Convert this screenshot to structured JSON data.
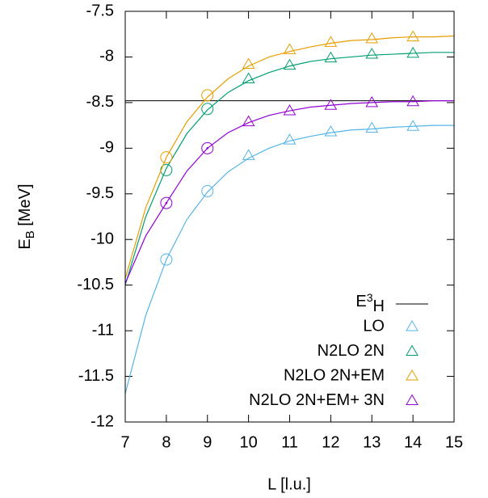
{
  "chart_data": {
    "type": "line",
    "xlabel": "L [l.u.]",
    "ylabel": {
      "main": "E",
      "sub": "B",
      "unit": " [MeV]"
    },
    "xlim": [
      7,
      15
    ],
    "ylim": [
      -12,
      -7.5
    ],
    "xticks": [
      7,
      8,
      9,
      10,
      11,
      12,
      13,
      14,
      15
    ],
    "yticks": [
      -12,
      -11.5,
      -11,
      -10.5,
      -10,
      -9.5,
      -9,
      -8.5,
      -8,
      -7.5
    ],
    "reference": {
      "label_parts": [
        "E",
        "3",
        "H"
      ],
      "value": -8.48,
      "color": "#000000"
    },
    "fit_x": [
      7,
      7.5,
      8,
      8.5,
      9,
      9.5,
      10,
      10.5,
      11,
      11.5,
      12,
      12.5,
      13,
      13.5,
      14,
      14.5,
      15
    ],
    "series": [
      {
        "name": "LO",
        "color": "#56b4e9",
        "x": [
          8,
          9,
          10,
          11,
          12,
          13,
          14
        ],
        "values": [
          -10.22,
          -9.47,
          -9.08,
          -8.91,
          -8.82,
          -8.78,
          -8.76
        ],
        "markers": [
          "circle",
          "circle",
          "triangle",
          "triangle",
          "triangle",
          "triangle",
          "triangle"
        ],
        "fit_values": [
          -11.69,
          -10.83,
          -10.22,
          -9.78,
          -9.48,
          -9.26,
          -9.11,
          -9.0,
          -8.92,
          -8.87,
          -8.83,
          -8.8,
          -8.79,
          -8.77,
          -8.76,
          -8.75,
          -8.75
        ]
      },
      {
        "name": "N2LO 2N",
        "color": "#009e73",
        "x": [
          8,
          9,
          10,
          11,
          12,
          13,
          14
        ],
        "values": [
          -9.24,
          -8.57,
          -8.24,
          -8.09,
          -8.01,
          -7.97,
          -7.96
        ],
        "markers": [
          "circle",
          "circle",
          "triangle",
          "triangle",
          "triangle",
          "triangle",
          "triangle"
        ],
        "fit_values": [
          -10.5,
          -9.75,
          -9.22,
          -8.84,
          -8.58,
          -8.39,
          -8.26,
          -8.17,
          -8.1,
          -8.05,
          -8.02,
          -8.0,
          -7.98,
          -7.97,
          -7.96,
          -7.95,
          -7.95
        ]
      },
      {
        "name": "N2LO 2N+EM",
        "color": "#e69f00",
        "x": [
          8,
          9,
          10,
          11,
          12,
          13,
          14
        ],
        "values": [
          -9.1,
          -8.42,
          -8.08,
          -7.92,
          -7.84,
          -7.8,
          -7.78
        ],
        "markers": [
          "circle",
          "circle",
          "triangle",
          "triangle",
          "triangle",
          "triangle",
          "triangle"
        ],
        "fit_values": [
          -10.43,
          -9.65,
          -9.1,
          -8.71,
          -8.44,
          -8.24,
          -8.1,
          -8.0,
          -7.94,
          -7.89,
          -7.85,
          -7.82,
          -7.81,
          -7.79,
          -7.78,
          -7.78,
          -7.77
        ]
      },
      {
        "name": "N2LO 2N+EM+ 3N",
        "color": "#9400d3",
        "x": [
          8,
          9,
          10,
          11,
          12,
          13,
          14
        ],
        "values": [
          -9.6,
          -9.0,
          -8.71,
          -8.59,
          -8.53,
          -8.5,
          -8.49
        ],
        "markers": [
          "circle-dot",
          "circle-dot",
          "triangle",
          "triangle",
          "triangle",
          "triangle",
          "triangle"
        ],
        "fit_values": [
          -10.48,
          -9.96,
          -9.6,
          -9.25,
          -9.0,
          -8.83,
          -8.72,
          -8.64,
          -8.59,
          -8.55,
          -8.53,
          -8.51,
          -8.5,
          -8.49,
          -8.49,
          -8.48,
          -8.48
        ]
      }
    ]
  }
}
